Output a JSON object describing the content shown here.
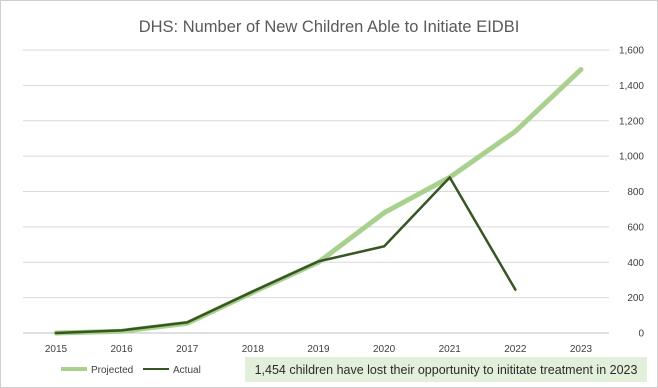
{
  "chart_data": {
    "type": "line",
    "title": "DHS: Number of New Children Able to Initiate EIDBI",
    "x": [
      "2015",
      "2016",
      "2017",
      "2018",
      "2019",
      "2020",
      "2021",
      "2022",
      "2023"
    ],
    "y_ticks": [
      "0",
      "200",
      "400",
      "600",
      "800",
      "1,000",
      "1,200",
      "1,400",
      "1,600"
    ],
    "ylim": [
      0,
      1600
    ],
    "y_axis_position": "right",
    "grid": true,
    "legend_position": "bottom-left",
    "series": [
      {
        "name": "Projected",
        "color": "#a9d18e",
        "values": [
          0,
          10,
          55,
          230,
          400,
          680,
          880,
          1140,
          1490
        ]
      },
      {
        "name": "Actual",
        "color": "#375623",
        "values": [
          0,
          15,
          60,
          235,
          405,
          490,
          880,
          245,
          null
        ]
      }
    ],
    "annotation": "1,454 children have lost their opportunity to inititate treatment in 2023",
    "annotation_background": "#e2efda"
  }
}
